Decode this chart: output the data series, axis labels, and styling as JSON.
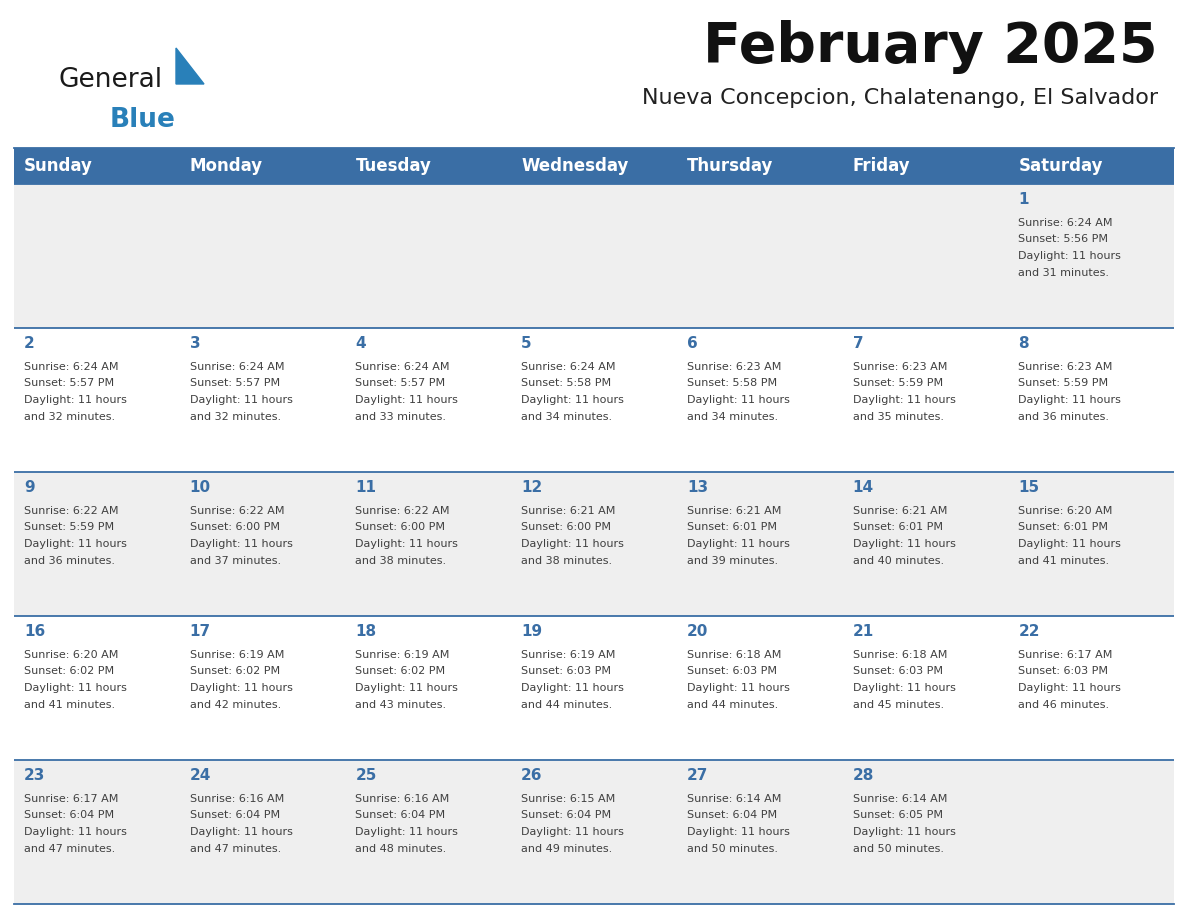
{
  "title": "February 2025",
  "subtitle": "Nueva Concepcion, Chalatenango, El Salvador",
  "days_of_week": [
    "Sunday",
    "Monday",
    "Tuesday",
    "Wednesday",
    "Thursday",
    "Friday",
    "Saturday"
  ],
  "header_bg": "#3a6ea5",
  "header_text_color": "#ffffff",
  "row_bg_a": "#efefef",
  "row_bg_b": "#ffffff",
  "day_number_color": "#3a6ea5",
  "info_text_color": "#404040",
  "line_color": "#3a6ea5",
  "background_color": "#ffffff",
  "logo_text1_color": "#1a1a1a",
  "logo_text2_color": "#2980b9",
  "logo_triangle_color": "#2980b9",
  "calendar_data": [
    [
      null,
      null,
      null,
      null,
      null,
      null,
      {
        "day": 1,
        "sunrise": "6:24 AM",
        "sunset": "5:56 PM",
        "daylight": "11 hours and 31 minutes."
      }
    ],
    [
      {
        "day": 2,
        "sunrise": "6:24 AM",
        "sunset": "5:57 PM",
        "daylight": "11 hours and 32 minutes."
      },
      {
        "day": 3,
        "sunrise": "6:24 AM",
        "sunset": "5:57 PM",
        "daylight": "11 hours and 32 minutes."
      },
      {
        "day": 4,
        "sunrise": "6:24 AM",
        "sunset": "5:57 PM",
        "daylight": "11 hours and 33 minutes."
      },
      {
        "day": 5,
        "sunrise": "6:24 AM",
        "sunset": "5:58 PM",
        "daylight": "11 hours and 34 minutes."
      },
      {
        "day": 6,
        "sunrise": "6:23 AM",
        "sunset": "5:58 PM",
        "daylight": "11 hours and 34 minutes."
      },
      {
        "day": 7,
        "sunrise": "6:23 AM",
        "sunset": "5:59 PM",
        "daylight": "11 hours and 35 minutes."
      },
      {
        "day": 8,
        "sunrise": "6:23 AM",
        "sunset": "5:59 PM",
        "daylight": "11 hours and 36 minutes."
      }
    ],
    [
      {
        "day": 9,
        "sunrise": "6:22 AM",
        "sunset": "5:59 PM",
        "daylight": "11 hours and 36 minutes."
      },
      {
        "day": 10,
        "sunrise": "6:22 AM",
        "sunset": "6:00 PM",
        "daylight": "11 hours and 37 minutes."
      },
      {
        "day": 11,
        "sunrise": "6:22 AM",
        "sunset": "6:00 PM",
        "daylight": "11 hours and 38 minutes."
      },
      {
        "day": 12,
        "sunrise": "6:21 AM",
        "sunset": "6:00 PM",
        "daylight": "11 hours and 38 minutes."
      },
      {
        "day": 13,
        "sunrise": "6:21 AM",
        "sunset": "6:01 PM",
        "daylight": "11 hours and 39 minutes."
      },
      {
        "day": 14,
        "sunrise": "6:21 AM",
        "sunset": "6:01 PM",
        "daylight": "11 hours and 40 minutes."
      },
      {
        "day": 15,
        "sunrise": "6:20 AM",
        "sunset": "6:01 PM",
        "daylight": "11 hours and 41 minutes."
      }
    ],
    [
      {
        "day": 16,
        "sunrise": "6:20 AM",
        "sunset": "6:02 PM",
        "daylight": "11 hours and 41 minutes."
      },
      {
        "day": 17,
        "sunrise": "6:19 AM",
        "sunset": "6:02 PM",
        "daylight": "11 hours and 42 minutes."
      },
      {
        "day": 18,
        "sunrise": "6:19 AM",
        "sunset": "6:02 PM",
        "daylight": "11 hours and 43 minutes."
      },
      {
        "day": 19,
        "sunrise": "6:19 AM",
        "sunset": "6:03 PM",
        "daylight": "11 hours and 44 minutes."
      },
      {
        "day": 20,
        "sunrise": "6:18 AM",
        "sunset": "6:03 PM",
        "daylight": "11 hours and 44 minutes."
      },
      {
        "day": 21,
        "sunrise": "6:18 AM",
        "sunset": "6:03 PM",
        "daylight": "11 hours and 45 minutes."
      },
      {
        "day": 22,
        "sunrise": "6:17 AM",
        "sunset": "6:03 PM",
        "daylight": "11 hours and 46 minutes."
      }
    ],
    [
      {
        "day": 23,
        "sunrise": "6:17 AM",
        "sunset": "6:04 PM",
        "daylight": "11 hours and 47 minutes."
      },
      {
        "day": 24,
        "sunrise": "6:16 AM",
        "sunset": "6:04 PM",
        "daylight": "11 hours and 47 minutes."
      },
      {
        "day": 25,
        "sunrise": "6:16 AM",
        "sunset": "6:04 PM",
        "daylight": "11 hours and 48 minutes."
      },
      {
        "day": 26,
        "sunrise": "6:15 AM",
        "sunset": "6:04 PM",
        "daylight": "11 hours and 49 minutes."
      },
      {
        "day": 27,
        "sunrise": "6:14 AM",
        "sunset": "6:04 PM",
        "daylight": "11 hours and 50 minutes."
      },
      {
        "day": 28,
        "sunrise": "6:14 AM",
        "sunset": "6:05 PM",
        "daylight": "11 hours and 50 minutes."
      },
      null
    ]
  ]
}
